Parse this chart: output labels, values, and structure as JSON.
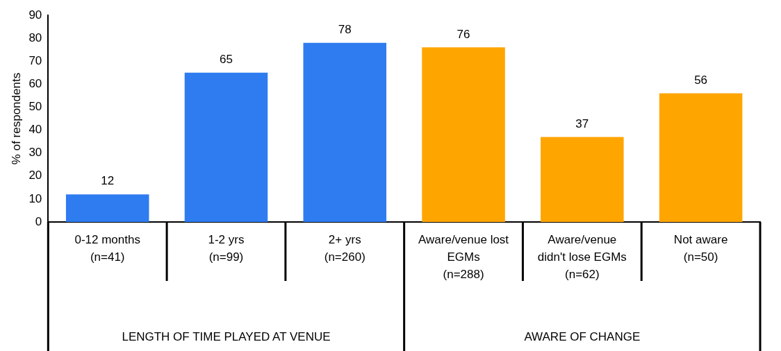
{
  "chart_data": {
    "type": "bar",
    "ylabel": "% of respondents",
    "categories": [
      "0-12 months\n(n=41)",
      "1-2 yrs\n(n=99)",
      "2+ yrs\n(n=260)",
      "Aware/venue lost\nEGMs\n(n=288)",
      "Aware/venue\ndidn't lose EGMs\n(n=62)",
      "Not aware\n(n=50)"
    ],
    "values": [
      12,
      65,
      78,
      76,
      37,
      56
    ],
    "colors": [
      "#2f7cf0",
      "#2f7cf0",
      "#2f7cf0",
      "#ffa500",
      "#ffa500",
      "#ffa500"
    ],
    "ylim": [
      0,
      90
    ],
    "yticks": [
      0,
      10,
      20,
      30,
      40,
      50,
      60,
      70,
      80,
      90
    ],
    "data_labels": true,
    "grid": false,
    "legend": false,
    "annotations": [
      "LENGTH OF TIME PLAYED AT VENUE",
      "AWARE OF CHANGE"
    ]
  }
}
